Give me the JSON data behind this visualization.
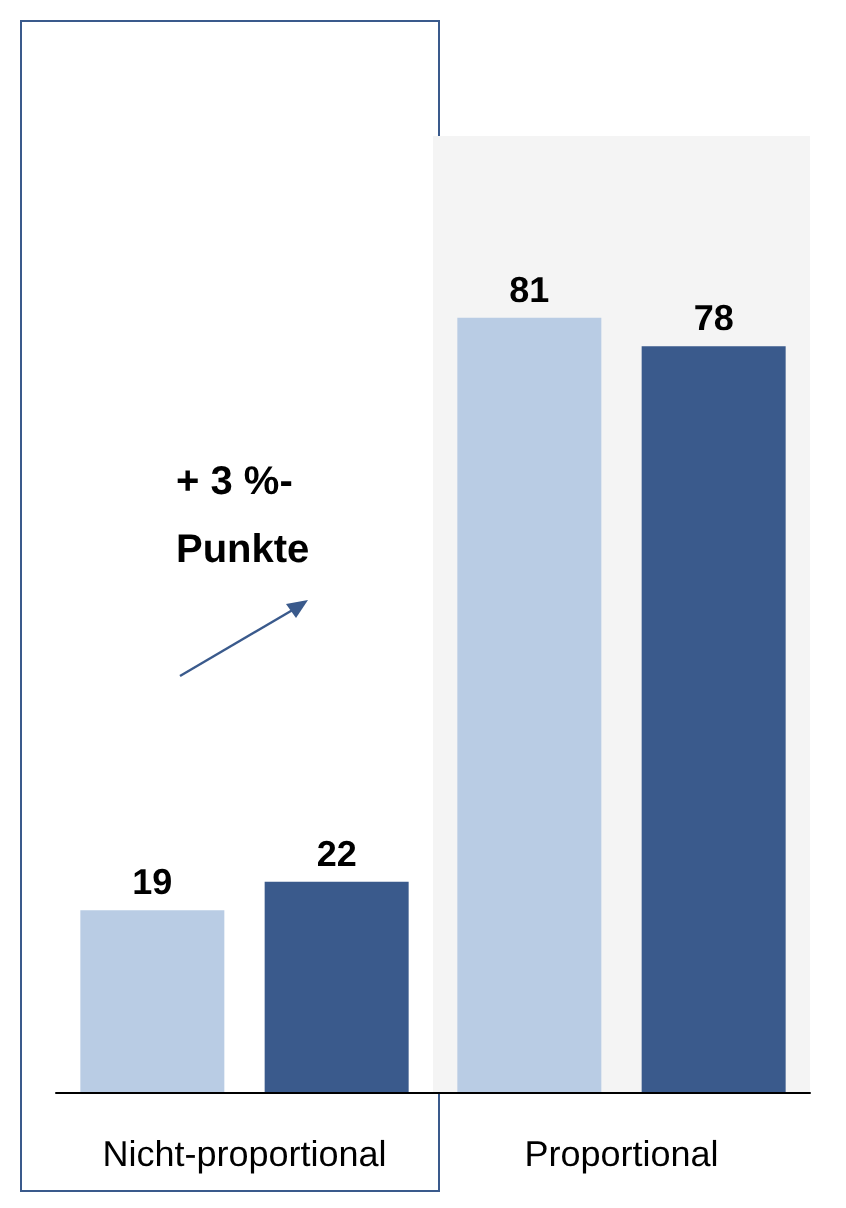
{
  "chart_data": {
    "type": "bar",
    "categories": [
      "Nicht-proportional",
      "Proportional"
    ],
    "series": [
      {
        "color": "#b9cce4",
        "values": [
          19,
          81
        ]
      },
      {
        "color": "#3a5a8c",
        "values": [
          22,
          78
        ]
      }
    ],
    "data_labels": true,
    "bands": [
      {
        "axis": "x",
        "from": "Proportional",
        "to": "Proportional",
        "color": "#f4f4f4"
      }
    ],
    "annotations": [
      "+ 3 %-\nPunkte"
    ]
  }
}
